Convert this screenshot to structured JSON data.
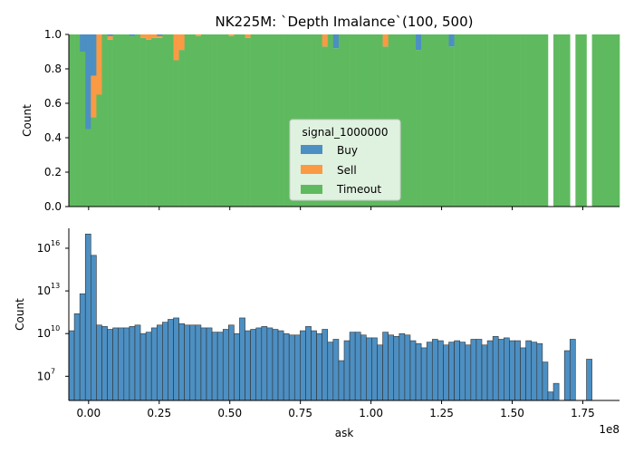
{
  "figure": {
    "title": "NK225M: `Depth Imalance`(100, 500)"
  },
  "colors": {
    "buy": "#4c8fc3",
    "sell": "#fb9a44",
    "timeout": "#5fba5f",
    "bar_edge": "#333333"
  },
  "chart_data": [
    {
      "type": "bar",
      "stacked": "fill",
      "xlabel": "",
      "ylabel": "Count",
      "xlim": [
        -7000000,
        188000000
      ],
      "ylim": [
        0,
        1
      ],
      "yticks": [
        "0.0",
        "0.2",
        "0.4",
        "0.6",
        "0.8",
        "1.0"
      ],
      "xticks": [
        "0.00",
        "0.25",
        "0.50",
        "0.75",
        "1.00",
        "1.25",
        "1.50",
        "1.75"
      ],
      "xtick_labels_visible": false,
      "legend": {
        "title": "signal_1000000",
        "position": "center",
        "entries": [
          "Buy",
          "Sell",
          "Timeout"
        ]
      },
      "bin_edges_start": -7000000,
      "bin_width": 1950000,
      "series": [
        {
          "name": "Buy",
          "buy_top_fraction": [
            0.0,
            0.0,
            0.1,
            0.55,
            0.24,
            0.0,
            0.0,
            0.0,
            0.0,
            0.0,
            0.0,
            0.0,
            0.0,
            0.0,
            0.0,
            0.0,
            0.0,
            0.0,
            0.0,
            0.0,
            0.0,
            0.0,
            0.0,
            0.0,
            0.0,
            0.0,
            0.0,
            0.0,
            0.0,
            0.0,
            0.0,
            0.0,
            0.0,
            0.0,
            0.0,
            0.0,
            0.0,
            0.0,
            0.0,
            0.0,
            0.0,
            0.0,
            0.0,
            0.0,
            0.0,
            0.0,
            0.0,
            0.0,
            0.0,
            0.0
          ]
        },
        {
          "name": "Sell",
          "sell_fraction": [
            0.0,
            0.0,
            0.0,
            0.0,
            0.24,
            0.35,
            0.0,
            0.0,
            0.02,
            0.0,
            0.0,
            0.0,
            0.0,
            0.0,
            0.0,
            0.0,
            0.02,
            0.03,
            0.02,
            0.0,
            0.0,
            0.15,
            0.09,
            0.0,
            0.0,
            0.0,
            0.0,
            0.0,
            0.0,
            0.0,
            0.0,
            0.0,
            0.01,
            0.0,
            0.0,
            0.0,
            0.02,
            0.0,
            0.0,
            0.07,
            0.0,
            0.0,
            0.0,
            0.0,
            0.0,
            0.0,
            0.0,
            0.0,
            0.0,
            0.0
          ]
        },
        {
          "name": "Timeout",
          "note_fraction_rest": "remainder to 1.0"
        }
      ],
      "top_buy_fraction": [
        0.0,
        0.0,
        0.1,
        0.55,
        0.24,
        0.0,
        0.0,
        0.01,
        0.0,
        0.0,
        0.0,
        0.01,
        0.0,
        0.0,
        0.0,
        0.0,
        0.01,
        0.0,
        0.0,
        0.0,
        0.0,
        0.0,
        0.0,
        0.0,
        0.0,
        0.0,
        0.0,
        0.0,
        0.0,
        0.0,
        0.0,
        0.0,
        0.0,
        0.0,
        0.0,
        0.0,
        0.0,
        0.0,
        0.0,
        0.0,
        0.0,
        0.0,
        0.0,
        0.0,
        0.0,
        0.0,
        0.0,
        0.0,
        0.08,
        0.0,
        0.0,
        0.0,
        0.0,
        0.0,
        0.0,
        0.0,
        0.0,
        0.0,
        0.0,
        0.0,
        0.0,
        0.0,
        0.0,
        0.09,
        0.0,
        0.0,
        0.0,
        0.0,
        0.0,
        0.07,
        0.0,
        0.0,
        0.0,
        0.0,
        0.0,
        0.0,
        0.0,
        0.0,
        0.0,
        0.0,
        0.0,
        0.0,
        0.0,
        0.0,
        0.0,
        0.0,
        0.0,
        0.0,
        0.0,
        0.0,
        0.0,
        0.0,
        0.0,
        0.0,
        0.0,
        0.0,
        0.0,
        0.0,
        0.0,
        0.0
      ],
      "top_sell_fraction": [
        0.0,
        0.0,
        0.0,
        0.0,
        0.24,
        0.35,
        0.0,
        0.02,
        0.0,
        0.0,
        0.0,
        0.0,
        0.0,
        0.02,
        0.03,
        0.02,
        0.01,
        0.0,
        0.0,
        0.15,
        0.09,
        0.0,
        0.0,
        0.01,
        0.0,
        0.0,
        0.0,
        0.0,
        0.0,
        0.01,
        0.0,
        0.0,
        0.02,
        0.0,
        0.0,
        0.0,
        0.0,
        0.0,
        0.0,
        0.0,
        0.0,
        0.0,
        0.0,
        0.0,
        0.0,
        0.0,
        0.07,
        0.0,
        0.0,
        0.0,
        0.0,
        0.0,
        0.0,
        0.0,
        0.0,
        0.0,
        0.0,
        0.07,
        0.0,
        0.0,
        0.0,
        0.0,
        0.0,
        0.0,
        0.0,
        0.0,
        0.0,
        0.0,
        0.0,
        0.0,
        0.0,
        0.0,
        0.0,
        0.0,
        0.0,
        0.0,
        0.0,
        0.0,
        0.0,
        0.0,
        0.0,
        0.0,
        0.0,
        0.0,
        0.0,
        0.0,
        0.0,
        0.0,
        0.0,
        0.0,
        0.0,
        0.0,
        0.0,
        0.0,
        0.0,
        0.0,
        0.0,
        0.0,
        0.0,
        0.0
      ],
      "empty_bins": [
        87,
        91,
        94
      ]
    },
    {
      "type": "bar",
      "series_name": "Count",
      "xlabel": "ask",
      "ylabel": "Count",
      "yscale": "log",
      "ylim_log10": [
        5.3,
        17.4
      ],
      "yticks": [
        {
          "base": "10",
          "exp": "7",
          "log10": 7
        },
        {
          "base": "10",
          "exp": "10",
          "log10": 10
        },
        {
          "base": "10",
          "exp": "13",
          "log10": 13
        },
        {
          "base": "10",
          "exp": "16",
          "log10": 16
        }
      ],
      "xlim": [
        -7000000,
        188000000
      ],
      "xticks": [
        "0.00",
        "0.25",
        "0.50",
        "0.75",
        "1.00",
        "1.25",
        "1.50",
        "1.75"
      ],
      "xtick_values": [
        0,
        25000000,
        50000000,
        75000000,
        100000000,
        125000000,
        150000000,
        175000000
      ],
      "x_offset_label": "1e8",
      "bin_edges_start": -7000000,
      "bin_width": 1950000,
      "log10_counts": [
        10.2,
        11.4,
        12.8,
        17.0,
        15.5,
        10.6,
        10.5,
        10.3,
        10.4,
        10.4,
        10.4,
        10.5,
        10.6,
        10.0,
        10.1,
        10.4,
        10.6,
        10.8,
        11.0,
        11.1,
        10.7,
        10.6,
        10.6,
        10.6,
        10.4,
        10.4,
        10.1,
        10.1,
        10.3,
        10.6,
        10.0,
        11.1,
        10.2,
        10.3,
        10.4,
        10.5,
        10.4,
        10.3,
        10.2,
        10.0,
        9.9,
        9.9,
        10.2,
        10.5,
        10.2,
        10.0,
        10.3,
        9.4,
        9.6,
        8.1,
        9.5,
        10.1,
        10.1,
        9.9,
        9.7,
        9.7,
        9.2,
        10.1,
        9.9,
        9.8,
        10.0,
        9.9,
        9.5,
        9.3,
        9.0,
        9.4,
        9.6,
        9.5,
        9.2,
        9.4,
        9.5,
        9.4,
        9.2,
        9.6,
        9.6,
        9.2,
        9.5,
        9.8,
        9.6,
        9.7,
        9.5,
        9.5,
        9.0,
        9.5,
        9.4,
        9.3,
        8.0,
        5.9,
        6.5,
        0,
        8.8,
        9.6,
        0,
        0,
        8.2
      ]
    }
  ]
}
